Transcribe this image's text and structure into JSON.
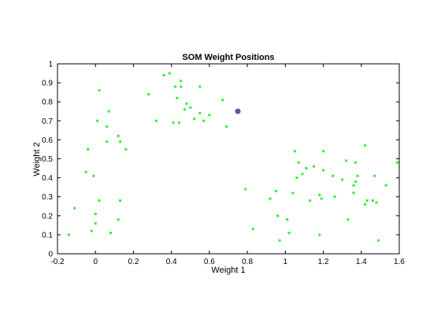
{
  "chart_data": {
    "type": "scatter",
    "title": "SOM Weight Positions",
    "xlabel": "Weight 1",
    "ylabel": "Weight 2",
    "xlim": [
      -0.2,
      1.6
    ],
    "ylim": [
      0,
      1
    ],
    "grid": false,
    "xticks": [
      "-0.2",
      "0",
      "0.2",
      "0.4",
      "0.6",
      "0.8",
      "1",
      "1.2",
      "1.4",
      "1.6"
    ],
    "xtick_values": [
      -0.2,
      0,
      0.2,
      0.4,
      0.6,
      0.8,
      1,
      1.2,
      1.4,
      1.6
    ],
    "yticks": [
      "0",
      "0.1",
      "0.2",
      "0.3",
      "0.4",
      "0.5",
      "0.6",
      "0.7",
      "0.8",
      "0.9",
      "1"
    ],
    "ytick_values": [
      0,
      0.1,
      0.2,
      0.3,
      0.4,
      0.5,
      0.6,
      0.7,
      0.8,
      0.9,
      1
    ],
    "colors": {
      "points": "#33ee33",
      "highlight": "#5a5a90",
      "axes": "#000000"
    },
    "series": [
      {
        "marker": "dot",
        "color": "#33ee33",
        "points": [
          [
            0.02,
            0.86
          ],
          [
            0.07,
            0.75
          ],
          [
            0.06,
            0.67
          ],
          [
            0.01,
            0.7
          ],
          [
            0.12,
            0.62
          ],
          [
            0.13,
            0.59
          ],
          [
            0.06,
            0.59
          ],
          [
            0.16,
            0.55
          ],
          [
            -0.04,
            0.55
          ],
          [
            -0.05,
            0.43
          ],
          [
            -0.01,
            0.41
          ],
          [
            -0.11,
            0.24
          ],
          [
            0.02,
            0.28
          ],
          [
            0.13,
            0.28
          ],
          [
            0.0,
            0.21
          ],
          [
            0.12,
            0.18
          ],
          [
            0.0,
            0.16
          ],
          [
            -0.02,
            0.12
          ],
          [
            0.08,
            0.11
          ],
          [
            -0.14,
            0.1
          ],
          [
            0.36,
            0.94
          ],
          [
            0.39,
            0.95
          ],
          [
            0.45,
            0.91
          ],
          [
            0.45,
            0.88
          ],
          [
            0.42,
            0.88
          ],
          [
            0.55,
            0.88
          ],
          [
            0.28,
            0.84
          ],
          [
            0.43,
            0.82
          ],
          [
            0.67,
            0.81
          ],
          [
            0.48,
            0.79
          ],
          [
            0.5,
            0.77
          ],
          [
            0.47,
            0.76
          ],
          [
            0.55,
            0.74
          ],
          [
            0.6,
            0.73
          ],
          [
            0.52,
            0.71
          ],
          [
            0.32,
            0.7
          ],
          [
            0.41,
            0.69
          ],
          [
            0.44,
            0.69
          ],
          [
            0.57,
            0.7
          ],
          [
            0.69,
            0.67
          ],
          [
            1.2,
            0.54
          ],
          [
            1.42,
            0.57
          ],
          [
            1.05,
            0.54
          ],
          [
            1.32,
            0.49
          ],
          [
            1.59,
            0.48
          ],
          [
            1.07,
            0.48
          ],
          [
            1.37,
            0.48
          ],
          [
            1.15,
            0.46
          ],
          [
            1.11,
            0.45
          ],
          [
            1.2,
            0.44
          ],
          [
            1.09,
            0.42
          ],
          [
            1.38,
            0.41
          ],
          [
            1.47,
            0.41
          ],
          [
            1.25,
            0.41
          ],
          [
            1.06,
            0.4
          ],
          [
            1.3,
            0.39
          ],
          [
            1.37,
            0.38
          ],
          [
            1.36,
            0.36
          ],
          [
            1.53,
            0.36
          ],
          [
            1.04,
            0.32
          ],
          [
            1.36,
            0.32
          ],
          [
            0.79,
            0.34
          ],
          [
            0.95,
            0.33
          ],
          [
            1.18,
            0.31
          ],
          [
            1.26,
            0.3
          ],
          [
            1.19,
            0.29
          ],
          [
            0.92,
            0.29
          ],
          [
            1.13,
            0.28
          ],
          [
            1.43,
            0.28
          ],
          [
            1.46,
            0.28
          ],
          [
            1.42,
            0.26
          ],
          [
            1.48,
            0.27
          ],
          [
            0.96,
            0.2
          ],
          [
            1.01,
            0.18
          ],
          [
            1.33,
            0.18
          ],
          [
            0.83,
            0.13
          ],
          [
            1.02,
            0.11
          ],
          [
            1.18,
            0.1
          ],
          [
            0.97,
            0.07
          ],
          [
            1.49,
            0.07
          ]
        ]
      },
      {
        "marker": "circle",
        "color": "#5a5a90",
        "points": [
          [
            0.75,
            0.75
          ]
        ]
      }
    ]
  }
}
